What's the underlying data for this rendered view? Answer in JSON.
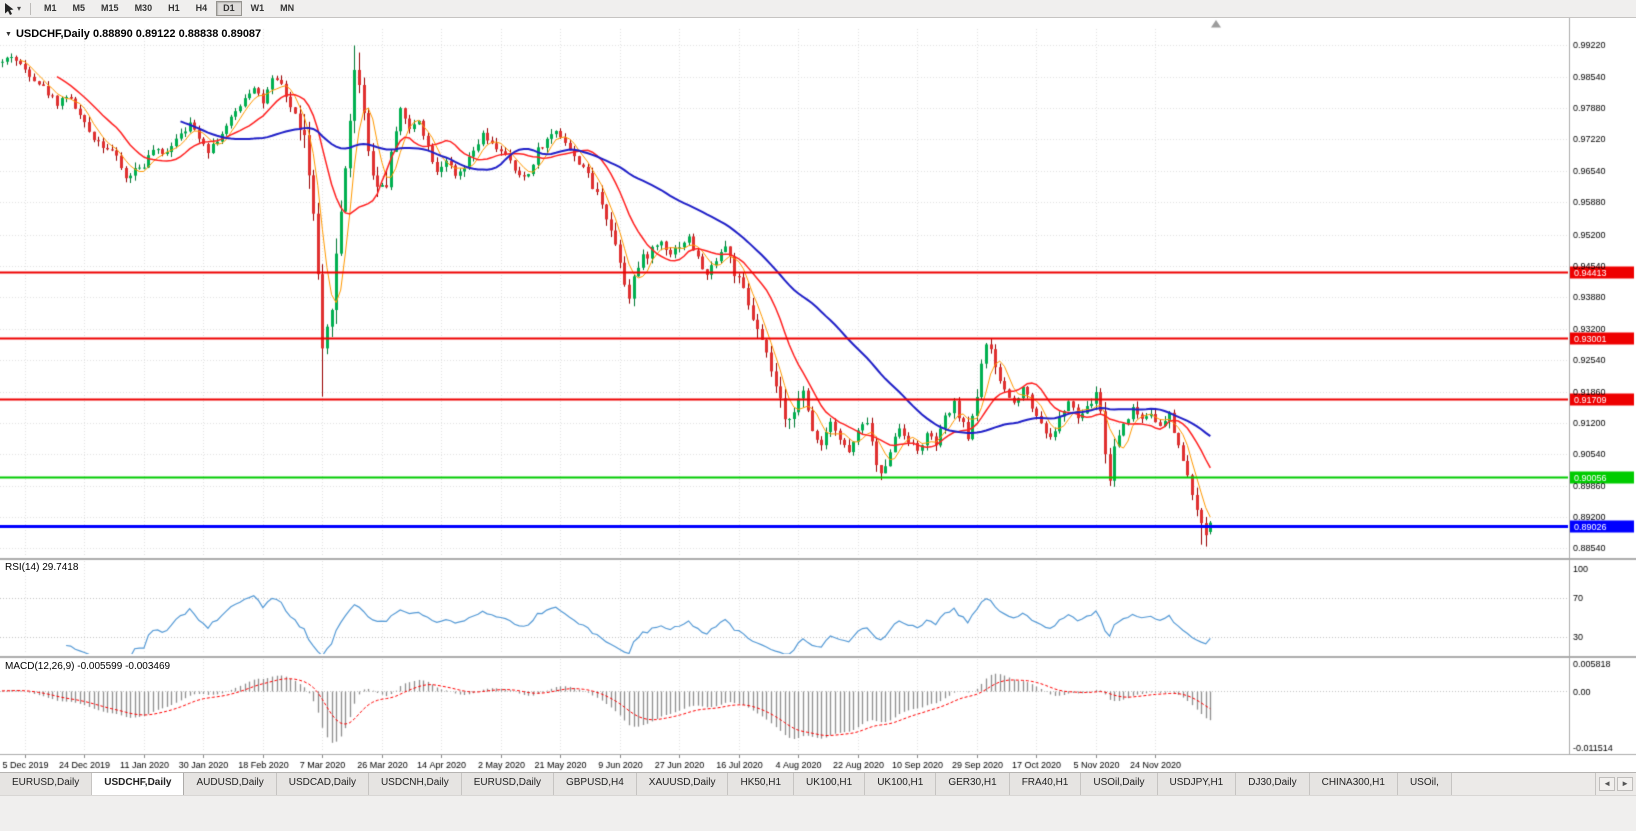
{
  "toolbar": {
    "caret": "▾",
    "timeframes": [
      {
        "label": "M1",
        "active": false
      },
      {
        "label": "M5",
        "active": false
      },
      {
        "label": "M15",
        "active": false
      },
      {
        "label": "M30",
        "active": false
      },
      {
        "label": "H1",
        "active": false
      },
      {
        "label": "H4",
        "active": false
      },
      {
        "label": "D1",
        "active": true
      },
      {
        "label": "W1",
        "active": false
      },
      {
        "label": "MN",
        "active": false
      }
    ]
  },
  "chart_header": {
    "dropdown_icon": "▼",
    "title": "USDCHF,Daily 0.88890 0.89122 0.88838 0.89087"
  },
  "indicators": {
    "rsi_label": "RSI(14) 29.7418",
    "macd_label": "MACD(12,26,9) -0.005599 -0.003469"
  },
  "tabbar": {
    "scroll_left": "◄",
    "scroll_right": "►",
    "tabs": [
      {
        "label": "EURUSD,Daily",
        "active": false
      },
      {
        "label": "USDCHF,Daily",
        "active": true
      },
      {
        "label": "AUDUSD,Daily",
        "active": false
      },
      {
        "label": "USDCAD,Daily",
        "active": false
      },
      {
        "label": "USDCNH,Daily",
        "active": false
      },
      {
        "label": "EURUSD,Daily",
        "active": false
      },
      {
        "label": "GBPUSD,H4",
        "active": false
      },
      {
        "label": "XAUUSD,Daily",
        "active": false
      },
      {
        "label": "HK50,H1",
        "active": false
      },
      {
        "label": "UK100,H1",
        "active": false
      },
      {
        "label": "UK100,H1",
        "active": false
      },
      {
        "label": "GER30,H1",
        "active": false
      },
      {
        "label": "FRA40,H1",
        "active": false
      },
      {
        "label": "USOil,Daily",
        "active": false
      },
      {
        "label": "USDJPY,H1",
        "active": false
      },
      {
        "label": "DJ30,Daily",
        "active": false
      },
      {
        "label": "CHINA300,H1",
        "active": false
      },
      {
        "label": "USOil,",
        "active": false
      }
    ]
  },
  "chart_data": {
    "type": "candlestick",
    "symbol": "USDCHF",
    "timeframe": "Daily",
    "last_bar": {
      "open": 0.8889,
      "high": 0.89122,
      "low": 0.88838,
      "close": 0.89087
    },
    "num_bars": 265,
    "bar_spacing": 4.577,
    "first_label_index": 5,
    "bars_per_label": 13,
    "price_axis_range": {
      "top": 0.9956,
      "bottom": 0.8838
    },
    "price_axis": [
      "0.99220",
      "0.98540",
      "0.97880",
      "0.97220",
      "0.96540",
      "0.95880",
      "0.95200",
      "0.94540",
      "0.93880",
      "0.93200",
      "0.92540",
      "0.91860",
      "0.91200",
      "0.90540",
      "0.89860",
      "0.89200",
      "0.88540"
    ],
    "date_axis": [
      "5 Dec 2019",
      "24 Dec 2019",
      "11 Jan 2020",
      "30 Jan 2020",
      "18 Feb 2020",
      "7 Mar 2020",
      "26 Mar 2020",
      "14 Apr 2020",
      "2 May 2020",
      "21 May 2020",
      "9 Jun 2020",
      "27 Jun 2020",
      "16 Jul 2020",
      "4 Aug 2020",
      "22 Aug 2020",
      "10 Sep 2020",
      "29 Sep 2020",
      "17 Oct 2020",
      "5 Nov 2020",
      "24 Nov 2020"
    ],
    "hlines": [
      {
        "value": 0.94413,
        "label": "0.94413",
        "color": "#EE0000",
        "width": 2
      },
      {
        "value": 0.93001,
        "label": "0.93001",
        "color": "#EE0000",
        "width": 2
      },
      {
        "value": 0.91709,
        "label": "0.91709",
        "color": "#EE0000",
        "width": 2
      },
      {
        "value": 0.90056,
        "label": "0.90056",
        "color": "#00CC00",
        "width": 2
      },
      {
        "value": 0.89026,
        "label": "0.89026",
        "color": "#0000FF",
        "width": 3
      }
    ],
    "anchors": [
      [
        0,
        0.9885
      ],
      [
        2,
        0.99
      ],
      [
        4,
        0.9878
      ],
      [
        6,
        0.9862
      ],
      [
        8,
        0.9842
      ],
      [
        10,
        0.982
      ],
      [
        12,
        0.98
      ],
      [
        14,
        0.9816
      ],
      [
        16,
        0.979
      ],
      [
        18,
        0.9752
      ],
      [
        20,
        0.9726
      ],
      [
        22,
        0.971
      ],
      [
        24,
        0.9698
      ],
      [
        26,
        0.9662
      ],
      [
        27,
        0.9638
      ],
      [
        29,
        0.9658
      ],
      [
        31,
        0.9668
      ],
      [
        33,
        0.97
      ],
      [
        35,
        0.9688
      ],
      [
        37,
        0.9712
      ],
      [
        39,
        0.974
      ],
      [
        41,
        0.9752
      ],
      [
        43,
        0.973
      ],
      [
        45,
        0.97
      ],
      [
        47,
        0.9722
      ],
      [
        49,
        0.9748
      ],
      [
        51,
        0.978
      ],
      [
        53,
        0.9812
      ],
      [
        55,
        0.9836
      ],
      [
        57,
        0.98
      ],
      [
        59,
        0.9846
      ],
      [
        61,
        0.9838
      ],
      [
        63,
        0.979
      ],
      [
        65,
        0.9756
      ],
      [
        66,
        0.972
      ],
      [
        67,
        0.964
      ],
      [
        68,
        0.956
      ],
      [
        69,
        0.942
      ],
      [
        70,
        0.926
      ],
      [
        71,
        0.931
      ],
      [
        72,
        0.938
      ],
      [
        73,
        0.947
      ],
      [
        74,
        0.957
      ],
      [
        75,
        0.967
      ],
      [
        76,
        0.977
      ],
      [
        77,
        0.986
      ],
      [
        78,
        0.985
      ],
      [
        79,
        0.978
      ],
      [
        80,
        0.97
      ],
      [
        82,
        0.962
      ],
      [
        84,
        0.9635
      ],
      [
        86,
        0.9745
      ],
      [
        87,
        0.979
      ],
      [
        89,
        0.974
      ],
      [
        91,
        0.9766
      ],
      [
        93,
        0.9706
      ],
      [
        95,
        0.9656
      ],
      [
        97,
        0.968
      ],
      [
        99,
        0.964
      ],
      [
        101,
        0.966
      ],
      [
        103,
        0.9696
      ],
      [
        105,
        0.973
      ],
      [
        107,
        0.9708
      ],
      [
        109,
        0.97
      ],
      [
        111,
        0.9672
      ],
      [
        113,
        0.964
      ],
      [
        115,
        0.9648
      ],
      [
        117,
        0.97
      ],
      [
        119,
        0.972
      ],
      [
        121,
        0.9742
      ],
      [
        123,
        0.9718
      ],
      [
        125,
        0.9682
      ],
      [
        127,
        0.9666
      ],
      [
        129,
        0.962
      ],
      [
        131,
        0.959
      ],
      [
        133,
        0.953
      ],
      [
        135,
        0.9468
      ],
      [
        136,
        0.942
      ],
      [
        137,
        0.9392
      ],
      [
        138,
        0.943
      ],
      [
        140,
        0.9468
      ],
      [
        142,
        0.949
      ],
      [
        144,
        0.9505
      ],
      [
        146,
        0.9482
      ],
      [
        148,
        0.9498
      ],
      [
        150,
        0.9512
      ],
      [
        152,
        0.9468
      ],
      [
        154,
        0.9432
      ],
      [
        156,
        0.947
      ],
      [
        158,
        0.9496
      ],
      [
        160,
        0.944
      ],
      [
        162,
        0.9396
      ],
      [
        164,
        0.934
      ],
      [
        166,
        0.9288
      ],
      [
        168,
        0.923
      ],
      [
        170,
        0.916
      ],
      [
        171,
        0.912
      ],
      [
        173,
        0.9155
      ],
      [
        175,
        0.918
      ],
      [
        177,
        0.9105
      ],
      [
        179,
        0.9075
      ],
      [
        181,
        0.913
      ],
      [
        183,
        0.9085
      ],
      [
        185,
        0.9058
      ],
      [
        187,
        0.91
      ],
      [
        189,
        0.9125
      ],
      [
        191,
        0.903
      ],
      [
        192,
        0.9008
      ],
      [
        194,
        0.9065
      ],
      [
        196,
        0.911
      ],
      [
        198,
        0.9085
      ],
      [
        200,
        0.906
      ],
      [
        202,
        0.9095
      ],
      [
        204,
        0.9075
      ],
      [
        206,
        0.913
      ],
      [
        208,
        0.916
      ],
      [
        210,
        0.9115
      ],
      [
        211,
        0.909
      ],
      [
        213,
        0.918
      ],
      [
        214,
        0.925
      ],
      [
        215,
        0.9288
      ],
      [
        216,
        0.9268
      ],
      [
        217,
        0.923
      ],
      [
        219,
        0.919
      ],
      [
        221,
        0.916
      ],
      [
        223,
        0.92
      ],
      [
        225,
        0.9155
      ],
      [
        227,
        0.912
      ],
      [
        229,
        0.9085
      ],
      [
        231,
        0.913
      ],
      [
        233,
        0.9165
      ],
      [
        235,
        0.913
      ],
      [
        237,
        0.915
      ],
      [
        239,
        0.918
      ],
      [
        240,
        0.915
      ],
      [
        241,
        0.905
      ],
      [
        242,
        0.9005
      ],
      [
        243,
        0.907
      ],
      [
        245,
        0.912
      ],
      [
        247,
        0.915
      ],
      [
        249,
        0.913
      ],
      [
        251,
        0.9145
      ],
      [
        253,
        0.911
      ],
      [
        255,
        0.9135
      ],
      [
        256,
        0.91
      ],
      [
        257,
        0.9075
      ],
      [
        258,
        0.904
      ],
      [
        259,
        0.9
      ],
      [
        260,
        0.8975
      ],
      [
        261,
        0.893
      ],
      [
        262,
        0.89
      ],
      [
        263,
        0.8882
      ],
      [
        264,
        0.8909
      ]
    ],
    "volatility": {
      "base": 0.0015,
      "zones": [
        [
          65,
          84,
          0.0042
        ],
        [
          129,
          141,
          0.0022
        ],
        [
          158,
          176,
          0.0026
        ],
        [
          190,
          193,
          0.002
        ],
        [
          213,
          217,
          0.0022
        ],
        [
          239,
          243,
          0.0028
        ],
        [
          255,
          264,
          0.002
        ]
      ]
    },
    "special_wicks": [
      {
        "i": 59,
        "high": 0.9852
      },
      {
        "i": 70,
        "low": 0.9176
      },
      {
        "i": 77,
        "high": 0.9921
      },
      {
        "i": 78,
        "high": 0.9906
      },
      {
        "i": 192,
        "low": 0.8999
      },
      {
        "i": 242,
        "low": 0.8997
      },
      {
        "i": 262,
        "low": 0.8862
      },
      {
        "i": 263,
        "low": 0.8858
      }
    ],
    "moving_averages": [
      {
        "period": 5,
        "color": "#FF9900",
        "width": 1
      },
      {
        "period": 13,
        "color": "#FF2020",
        "width": 1.5
      },
      {
        "period": 40,
        "color": "#2020C8",
        "width": 2
      }
    ],
    "rsi": {
      "period": 14,
      "current": 29.7418,
      "levels": [
        100,
        70,
        30
      ],
      "color": "#559AD6"
    },
    "macd": {
      "fast": 12,
      "slow": 26,
      "signal": 9,
      "current_macd": -0.005599,
      "current_signal": -0.003469,
      "axis": {
        "max": 0.005818,
        "min": -0.011514
      },
      "axis_labels": [
        "0.005818",
        "0.00",
        "-0.011514"
      ],
      "hist_color": "#909090",
      "signal_color": "#FF0000"
    },
    "colors": {
      "bg": "#FFFFFF",
      "grid": "#E2E2E2",
      "up": "#00B050",
      "up_stroke": "#007A33",
      "down": "#E03030",
      "down_stroke": "#990000",
      "axis_text": "#000000"
    }
  }
}
